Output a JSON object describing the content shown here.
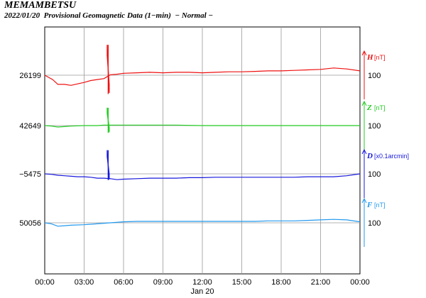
{
  "header": {
    "station": "MEMAMBETSU",
    "subtitle": "2022/01/20  Provisional Geomagnetic Data (1−min)  − Normal −"
  },
  "chart_data": {
    "type": "line",
    "x_ticks": [
      "00:00",
      "03:00",
      "06:00",
      "09:00",
      "12:00",
      "15:00",
      "18:00",
      "21:00",
      "00:00"
    ],
    "x_date_label": "Jan 20",
    "x_hours_range": [
      0,
      24
    ],
    "series": [
      {
        "name": "H",
        "unit": "[nT]",
        "baseline_label": "26199",
        "scale_label": "100",
        "color": "#ee1111",
        "points": [
          [
            0,
            26199
          ],
          [
            0.6,
            26190
          ],
          [
            1.0,
            26180
          ],
          [
            1.5,
            26180
          ],
          [
            2.0,
            26178
          ],
          [
            2.5,
            26181
          ],
          [
            3.0,
            26184
          ],
          [
            3.5,
            26188
          ],
          [
            4.0,
            26190
          ],
          [
            4.5,
            26192
          ],
          [
            4.7,
            26195
          ],
          [
            5.0,
            26200
          ],
          [
            5.5,
            26201
          ],
          [
            6.0,
            26203
          ],
          [
            7.0,
            26204
          ],
          [
            8.0,
            26205
          ],
          [
            9.0,
            26204
          ],
          [
            10.0,
            26205
          ],
          [
            11.0,
            26205
          ],
          [
            12.0,
            26204
          ],
          [
            13.0,
            26205
          ],
          [
            14.0,
            26206
          ],
          [
            15.0,
            26206
          ],
          [
            16.0,
            26207
          ],
          [
            17.0,
            26208
          ],
          [
            18.0,
            26208
          ],
          [
            19.0,
            26209
          ],
          [
            20.0,
            26210
          ],
          [
            21.0,
            26211
          ],
          [
            22.0,
            26214
          ],
          [
            23.0,
            26212
          ],
          [
            24.0,
            26208
          ]
        ],
        "spike": {
          "x": 4.83,
          "min": 26160,
          "max": 26262
        }
      },
      {
        "name": "Z",
        "unit": "[nT]",
        "baseline_label": "42649",
        "scale_label": "100",
        "color": "#22cc22",
        "points": [
          [
            0,
            42649
          ],
          [
            0.5,
            42648
          ],
          [
            1.0,
            42646
          ],
          [
            1.5,
            42647
          ],
          [
            2.0,
            42648
          ],
          [
            3.0,
            42649
          ],
          [
            4.0,
            42649
          ],
          [
            4.5,
            42650
          ],
          [
            5.0,
            42650
          ],
          [
            6.0,
            42650
          ],
          [
            8.0,
            42650
          ],
          [
            10.0,
            42650
          ],
          [
            12.0,
            42649
          ],
          [
            14.0,
            42649
          ],
          [
            16.0,
            42649
          ],
          [
            18.0,
            42649
          ],
          [
            20.0,
            42649
          ],
          [
            22.0,
            42649
          ],
          [
            24.0,
            42649
          ]
        ],
        "spike": {
          "x": 4.83,
          "min": 42634,
          "max": 42686
        }
      },
      {
        "name": "D",
        "unit": "[x0.1arcmin]",
        "baseline_label": "−5475",
        "scale_label": "100",
        "color": "#1818dd",
        "points": [
          [
            0,
            -5475
          ],
          [
            0.5,
            -5476
          ],
          [
            1.0,
            -5478
          ],
          [
            1.5,
            -5479
          ],
          [
            2.0,
            -5480
          ],
          [
            2.5,
            -5481
          ],
          [
            3.0,
            -5481
          ],
          [
            3.5,
            -5482
          ],
          [
            4.0,
            -5484
          ],
          [
            4.5,
            -5484
          ],
          [
            5.0,
            -5485
          ],
          [
            5.5,
            -5487
          ],
          [
            6.0,
            -5486
          ],
          [
            7.0,
            -5485
          ],
          [
            8.0,
            -5484
          ],
          [
            9.0,
            -5484
          ],
          [
            10.0,
            -5484
          ],
          [
            11.0,
            -5483
          ],
          [
            12.0,
            -5483
          ],
          [
            13.0,
            -5482
          ],
          [
            14.0,
            -5482
          ],
          [
            15.0,
            -5482
          ],
          [
            16.0,
            -5482
          ],
          [
            17.0,
            -5482
          ],
          [
            18.0,
            -5482
          ],
          [
            19.0,
            -5482
          ],
          [
            20.0,
            -5481
          ],
          [
            21.0,
            -5481
          ],
          [
            22.0,
            -5481
          ],
          [
            23.0,
            -5479
          ],
          [
            24.0,
            -5475
          ]
        ],
        "spike": {
          "x": 4.83,
          "min": -5488,
          "max": -5426
        }
      },
      {
        "name": "F",
        "unit": "[nT]",
        "baseline_label": "50056",
        "scale_label": "100",
        "color": "#2299ee",
        "points": [
          [
            0,
            50056
          ],
          [
            0.5,
            50054
          ],
          [
            1.0,
            50049
          ],
          [
            1.5,
            50050
          ],
          [
            2.0,
            50051
          ],
          [
            3.0,
            50052
          ],
          [
            4.0,
            50054
          ],
          [
            5.0,
            50056
          ],
          [
            6.0,
            50058
          ],
          [
            7.0,
            50059
          ],
          [
            8.0,
            50059
          ],
          [
            9.0,
            50059
          ],
          [
            10.0,
            50059
          ],
          [
            11.0,
            50059
          ],
          [
            12.0,
            50059
          ],
          [
            13.0,
            50059
          ],
          [
            14.0,
            50059
          ],
          [
            15.0,
            50059
          ],
          [
            16.0,
            50059
          ],
          [
            17.0,
            50060
          ],
          [
            18.0,
            50060
          ],
          [
            19.0,
            50060
          ],
          [
            20.0,
            50061
          ],
          [
            21.0,
            50062
          ],
          [
            22.0,
            50063
          ],
          [
            23.0,
            50062
          ],
          [
            24.0,
            50058
          ]
        ]
      }
    ]
  }
}
